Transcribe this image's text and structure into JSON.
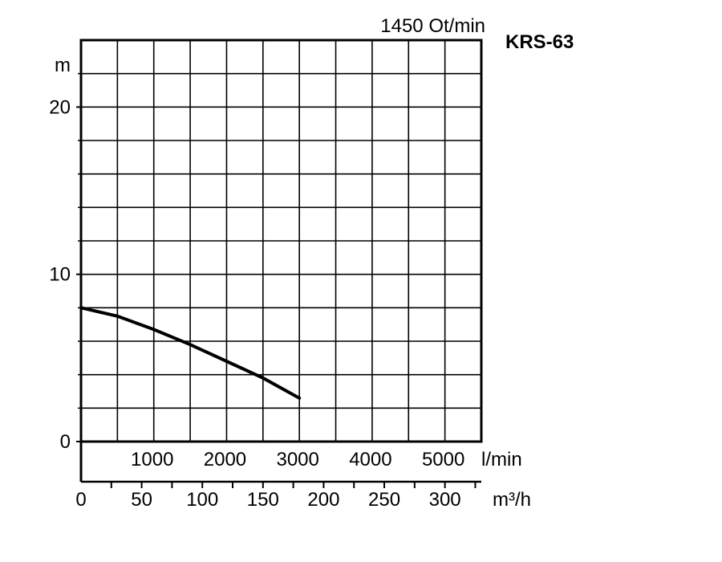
{
  "chart_data": {
    "type": "line",
    "title": "KRS-63",
    "speed_label": "1450 Ot/min",
    "ylabel": "m",
    "ylim": [
      0,
      24
    ],
    "yticks": [
      0,
      10,
      20
    ],
    "ytick_labels": [
      "0",
      "10",
      "20"
    ],
    "grid": true,
    "x_lmin": {
      "unit": "l/min",
      "lim": [
        0,
        5500
      ],
      "ticks": [
        1000,
        2000,
        3000,
        4000,
        5000
      ],
      "tick_labels": [
        "1000",
        "2000",
        "3000",
        "4000",
        "5000"
      ]
    },
    "x_m3h": {
      "unit": "m³/h",
      "lim": [
        0,
        330
      ],
      "ticks": [
        0,
        50,
        100,
        150,
        200,
        250,
        300
      ],
      "tick_labels": [
        "0",
        "50",
        "100",
        "150",
        "200",
        "250",
        "300"
      ]
    },
    "series": [
      {
        "x": [
          0,
          500,
          1000,
          1500,
          2000,
          2500,
          3000
        ],
        "y": [
          8.0,
          7.5,
          6.7,
          5.8,
          4.8,
          3.8,
          2.6
        ]
      }
    ]
  }
}
